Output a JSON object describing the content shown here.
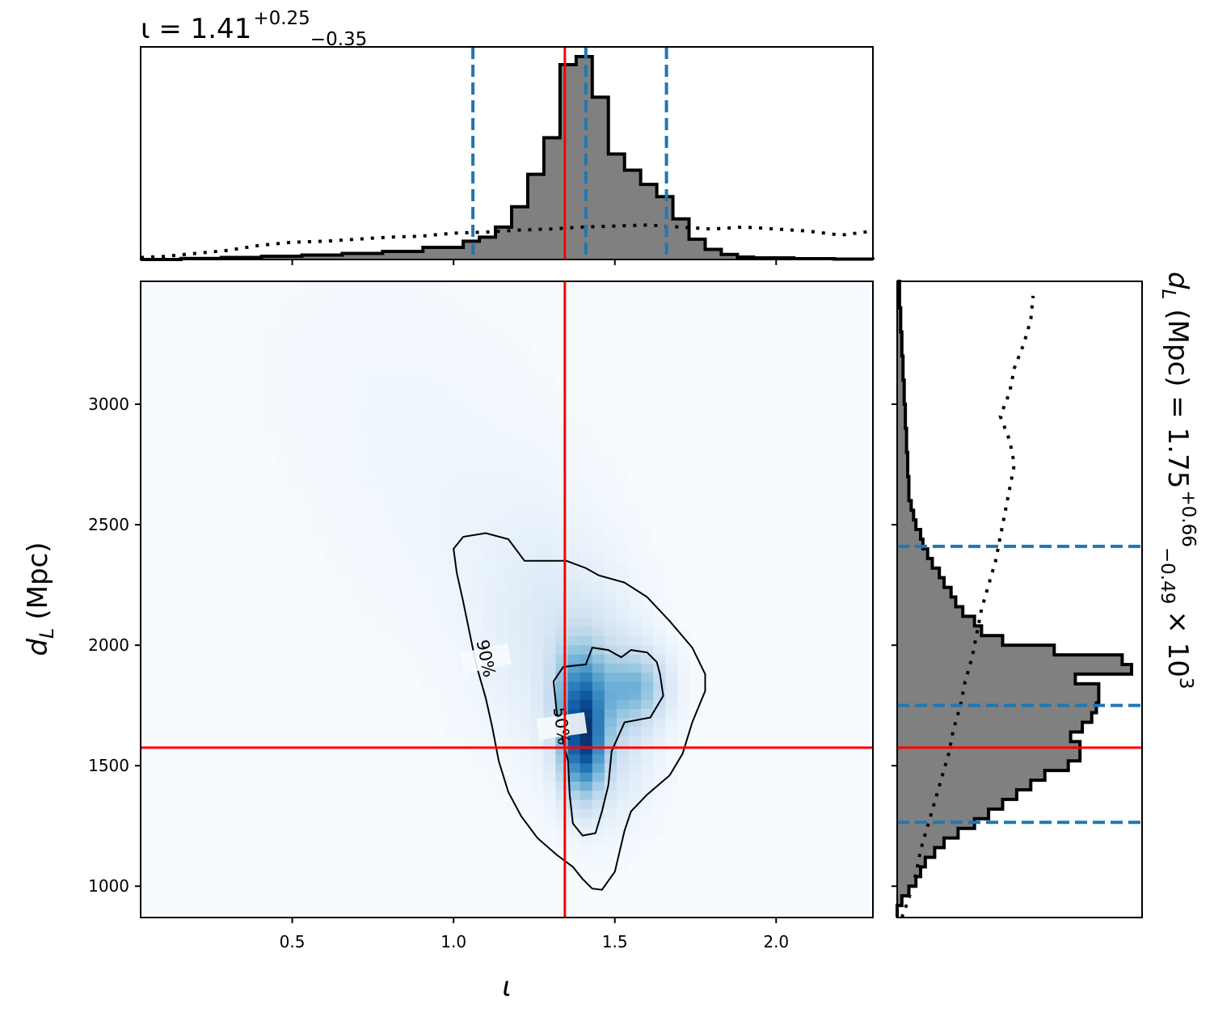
{
  "chart_data": {
    "type": "corner_plot",
    "x_parameter": {
      "symbol": "ι",
      "xlabel": "ι",
      "xlim": [
        0.03,
        2.3
      ],
      "xticks": [
        0.5,
        1.0,
        1.5,
        2.0
      ],
      "xtick_labels": [
        "0.5",
        "1.0",
        "1.5",
        "2.0"
      ],
      "top_title": {
        "prefix": "ι = 1.41",
        "plus": "+0.25",
        "minus": "−0.35"
      },
      "median": 1.41,
      "quantiles": [
        1.06,
        1.41,
        1.66
      ],
      "injected": 1.345
    },
    "y_parameter": {
      "ylabel_main": "d",
      "ylabel_sub": "L",
      "ylabel_unit": "(Mpc)",
      "ylim": [
        870,
        3510
      ],
      "yticks": [
        1000,
        1500,
        2000,
        2500,
        3000
      ],
      "ytick_labels": [
        "1000",
        "1500",
        "2000",
        "2500",
        "3000"
      ],
      "right_title": {
        "prefix": "(Mpc) = 1.75",
        "plus": "+0.66",
        "minus": "−0.49",
        "scale": "× 10",
        "exponent": "3"
      },
      "median": 1750,
      "quantiles": [
        1265,
        1750,
        2410
      ],
      "injected": 1575
    },
    "marginal_x": {
      "edges": [
        0.03,
        0.155,
        0.28,
        0.405,
        0.53,
        0.655,
        0.78,
        0.905,
        1.03,
        1.08,
        1.13,
        1.18,
        1.23,
        1.28,
        1.33,
        1.38,
        1.43,
        1.48,
        1.53,
        1.58,
        1.63,
        1.68,
        1.73,
        1.78,
        1.83,
        1.88,
        1.93,
        2.055,
        2.18,
        2.3
      ],
      "posterior": [
        0.0,
        0.005,
        0.01,
        0.016,
        0.022,
        0.03,
        0.04,
        0.06,
        0.09,
        0.11,
        0.16,
        0.26,
        0.42,
        0.6,
        0.96,
        1.0,
        0.8,
        0.52,
        0.44,
        0.37,
        0.31,
        0.2,
        0.1,
        0.05,
        0.025,
        0.012,
        0.008,
        0.004,
        0.002
      ],
      "prior_x": [
        0.03,
        0.1,
        0.2,
        0.3,
        0.4,
        0.5,
        0.6,
        0.7,
        0.8,
        0.9,
        1.0,
        1.1,
        1.2,
        1.3,
        1.4,
        1.5,
        1.6,
        1.7,
        1.8,
        1.9,
        2.0,
        2.1,
        2.2,
        2.3
      ],
      "prior_y": [
        0.01,
        0.015,
        0.03,
        0.045,
        0.07,
        0.085,
        0.09,
        0.1,
        0.11,
        0.115,
        0.13,
        0.135,
        0.145,
        0.15,
        0.16,
        0.165,
        0.17,
        0.16,
        0.15,
        0.16,
        0.15,
        0.14,
        0.12,
        0.14
      ]
    },
    "marginal_y": {
      "edges": [
        870,
        920,
        960,
        1000,
        1040,
        1080,
        1120,
        1160,
        1200,
        1240,
        1280,
        1320,
        1360,
        1400,
        1440,
        1480,
        1520,
        1560,
        1600,
        1640,
        1680,
        1720,
        1760,
        1800,
        1840,
        1880,
        1920,
        1960,
        2000,
        2040,
        2080,
        2120,
        2160,
        2200,
        2240,
        2280,
        2320,
        2360,
        2400,
        2440,
        2480,
        2520,
        2560,
        2600,
        2700,
        2800,
        2900,
        3000,
        3100,
        3200,
        3300,
        3400,
        3510
      ],
      "posterior": [
        0.0,
        0.02,
        0.05,
        0.08,
        0.1,
        0.12,
        0.16,
        0.2,
        0.26,
        0.33,
        0.39,
        0.45,
        0.51,
        0.57,
        0.63,
        0.73,
        0.78,
        0.78,
        0.74,
        0.79,
        0.83,
        0.85,
        0.86,
        0.86,
        0.76,
        1.0,
        0.96,
        0.67,
        0.45,
        0.36,
        0.33,
        0.28,
        0.25,
        0.23,
        0.2,
        0.18,
        0.15,
        0.13,
        0.11,
        0.1,
        0.08,
        0.07,
        0.06,
        0.05,
        0.045,
        0.04,
        0.035,
        0.03,
        0.025,
        0.02,
        0.015,
        0.01
      ],
      "prior_d": [
        870,
        950,
        1050,
        1150,
        1250,
        1350,
        1450,
        1550,
        1650,
        1750,
        1850,
        1950,
        2050,
        2150,
        2250,
        2350,
        2450,
        2550,
        2650,
        2750,
        2850,
        2950,
        3050,
        3150,
        3250,
        3350,
        3450
      ],
      "prior_v": [
        0.02,
        0.05,
        0.08,
        0.1,
        0.13,
        0.16,
        0.19,
        0.22,
        0.24,
        0.27,
        0.29,
        0.32,
        0.34,
        0.36,
        0.39,
        0.42,
        0.44,
        0.46,
        0.48,
        0.5,
        0.48,
        0.44,
        0.48,
        0.5,
        0.54,
        0.57,
        0.58
      ]
    },
    "joint": {
      "colormap": "Blues",
      "contours": [
        {
          "label": "50%",
          "level": 0.5,
          "path": [
            [
              1.355,
              1520
            ],
            [
              1.34,
              1600
            ],
            [
              1.32,
              1720
            ],
            [
              1.31,
              1850
            ],
            [
              1.34,
              1910
            ],
            [
              1.41,
              1920
            ],
            [
              1.43,
              1990
            ],
            [
              1.48,
              1980
            ],
            [
              1.52,
              1950
            ],
            [
              1.55,
              1980
            ],
            [
              1.6,
              1970
            ],
            [
              1.63,
              1930
            ],
            [
              1.64,
              1880
            ],
            [
              1.65,
              1790
            ],
            [
              1.61,
              1700
            ],
            [
              1.53,
              1680
            ],
            [
              1.49,
              1560
            ],
            [
              1.48,
              1420
            ],
            [
              1.46,
              1310
            ],
            [
              1.44,
              1220
            ],
            [
              1.4,
              1210
            ],
            [
              1.37,
              1260
            ],
            [
              1.36,
              1380
            ],
            [
              1.355,
              1520
            ]
          ]
        },
        {
          "label": "90%",
          "level": 0.9,
          "path": [
            [
              1.0,
              2400
            ],
            [
              1.03,
              2450
            ],
            [
              1.1,
              2465
            ],
            [
              1.17,
              2440
            ],
            [
              1.22,
              2350
            ],
            [
              1.35,
              2350
            ],
            [
              1.41,
              2320
            ],
            [
              1.45,
              2290
            ],
            [
              1.53,
              2260
            ],
            [
              1.6,
              2200
            ],
            [
              1.67,
              2100
            ],
            [
              1.74,
              1990
            ],
            [
              1.78,
              1880
            ],
            [
              1.78,
              1810
            ],
            [
              1.74,
              1680
            ],
            [
              1.71,
              1550
            ],
            [
              1.67,
              1460
            ],
            [
              1.6,
              1380
            ],
            [
              1.55,
              1310
            ],
            [
              1.53,
              1230
            ],
            [
              1.5,
              1060
            ],
            [
              1.46,
              985
            ],
            [
              1.43,
              990
            ],
            [
              1.4,
              1030
            ],
            [
              1.37,
              1080
            ],
            [
              1.32,
              1130
            ],
            [
              1.26,
              1200
            ],
            [
              1.21,
              1290
            ],
            [
              1.17,
              1390
            ],
            [
              1.14,
              1520
            ],
            [
              1.12,
              1660
            ],
            [
              1.1,
              1780
            ],
            [
              1.07,
              1920
            ],
            [
              1.05,
              2050
            ],
            [
              1.03,
              2180
            ],
            [
              1.01,
              2300
            ],
            [
              1.0,
              2400
            ]
          ]
        }
      ],
      "density_modes": [
        {
          "x": 1.4,
          "d": 1580,
          "weight": 1.0,
          "sx": 0.045,
          "sd": 150
        },
        {
          "x": 1.39,
          "d": 1820,
          "weight": 0.55,
          "sx": 0.05,
          "sd": 150
        },
        {
          "x": 1.57,
          "d": 1830,
          "weight": 0.5,
          "sx": 0.07,
          "sd": 100
        },
        {
          "x": 1.47,
          "d": 1700,
          "weight": 0.35,
          "sx": 0.1,
          "sd": 260
        },
        {
          "x": 1.3,
          "d": 2050,
          "weight": 0.18,
          "sx": 0.16,
          "sd": 350
        },
        {
          "x": 1.0,
          "d": 2600,
          "weight": 0.06,
          "sx": 0.25,
          "sd": 420
        },
        {
          "x": 0.7,
          "d": 3150,
          "weight": 0.035,
          "sx": 0.25,
          "sd": 350
        }
      ]
    },
    "colors": {
      "posterior_fill": "#808080",
      "outline": "#000000",
      "quantile_lines": "#1f77b4",
      "injection_lines": "#ff0000"
    }
  }
}
